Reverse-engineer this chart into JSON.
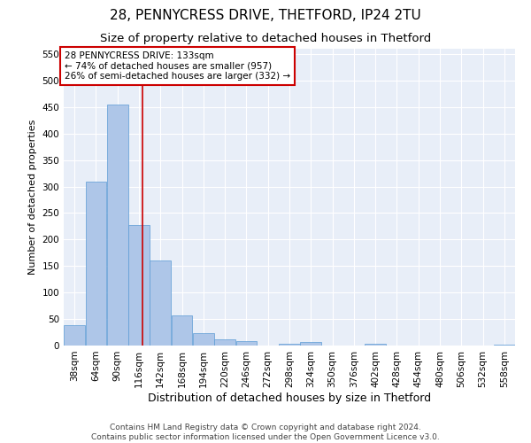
{
  "title1": "28, PENNYCRESS DRIVE, THETFORD, IP24 2TU",
  "title2": "Size of property relative to detached houses in Thetford",
  "xlabel": "Distribution of detached houses by size in Thetford",
  "ylabel": "Number of detached properties",
  "footer1": "Contains HM Land Registry data © Crown copyright and database right 2024.",
  "footer2": "Contains public sector information licensed under the Open Government Licence v3.0.",
  "annotation_line1": "28 PENNYCRESS DRIVE: 133sqm",
  "annotation_line2": "← 74% of detached houses are smaller (957)",
  "annotation_line3": "26% of semi-detached houses are larger (332) →",
  "property_size": 133,
  "categories": [
    "38sqm",
    "64sqm",
    "90sqm",
    "116sqm",
    "142sqm",
    "168sqm",
    "194sqm",
    "220sqm",
    "246sqm",
    "272sqm",
    "298sqm",
    "324sqm",
    "350sqm",
    "376sqm",
    "402sqm",
    "428sqm",
    "454sqm",
    "480sqm",
    "506sqm",
    "532sqm",
    "558sqm"
  ],
  "bin_edges": [
    38,
    64,
    90,
    116,
    142,
    168,
    194,
    220,
    246,
    272,
    298,
    324,
    350,
    376,
    402,
    428,
    454,
    480,
    506,
    532,
    558,
    584
  ],
  "values": [
    38,
    310,
    455,
    228,
    160,
    57,
    24,
    11,
    8,
    0,
    4,
    7,
    0,
    0,
    3,
    0,
    0,
    0,
    0,
    0,
    2
  ],
  "bar_color": "#aec6e8",
  "bar_edge_color": "#5b9bd5",
  "vline_color": "#cc0000",
  "annotation_box_color": "#cc0000",
  "bg_color": "#e8eef8",
  "grid_color": "#ffffff",
  "ylim": [
    0,
    560
  ],
  "yticks": [
    0,
    50,
    100,
    150,
    200,
    250,
    300,
    350,
    400,
    450,
    500,
    550
  ],
  "title1_fontsize": 11,
  "title2_fontsize": 9.5,
  "xlabel_fontsize": 9,
  "ylabel_fontsize": 8,
  "tick_fontsize": 7.5,
  "annotation_fontsize": 7.5,
  "footer_fontsize": 6.5
}
